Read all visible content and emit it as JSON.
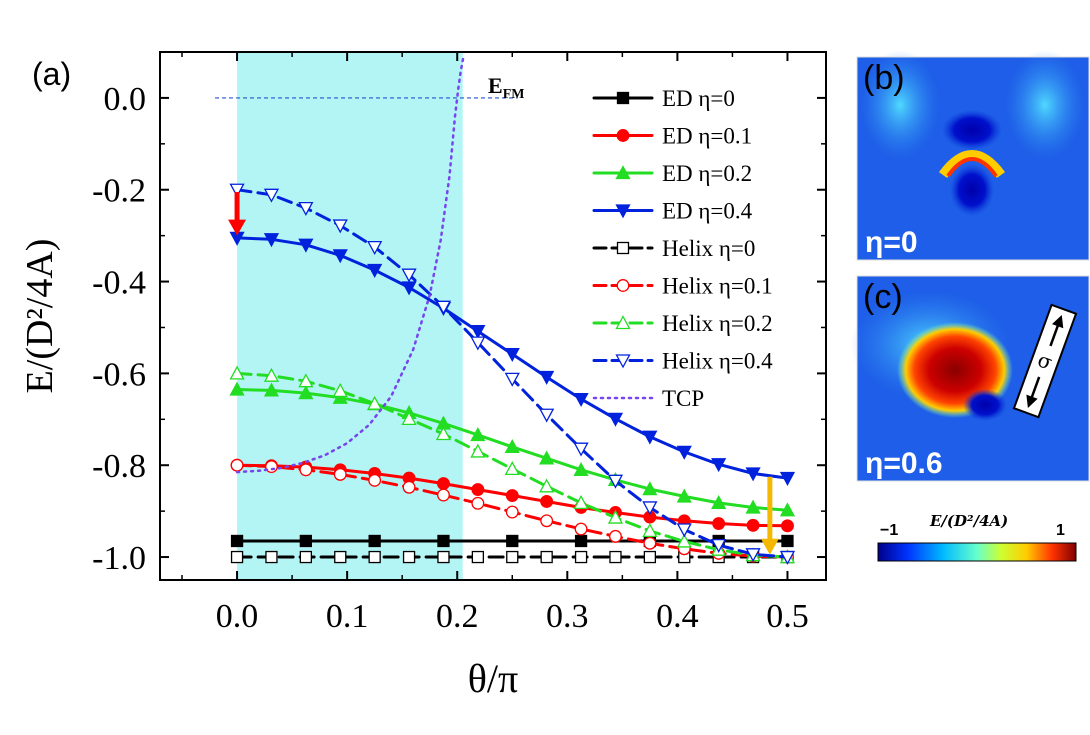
{
  "chart_data": {
    "type": "line",
    "panel_label": "(a)",
    "xlabel": "θ/π",
    "ylabel": "E/(D²/4A)",
    "xlim": [
      -0.07,
      0.535
    ],
    "ylim": [
      -1.05,
      0.1
    ],
    "x_ticks": [
      "0.0",
      "0.1",
      "0.2",
      "0.3",
      "0.4",
      "0.5"
    ],
    "y_ticks": [
      "0.0",
      "-0.2",
      "-0.4",
      "-0.6",
      "-0.8",
      "-1.0"
    ],
    "efm_label": "E",
    "efm_sub": "FM",
    "efm_value": 0.0,
    "shaded_region": [
      0.0,
      0.205
    ],
    "shade_color": "#b3f5f5",
    "series": [
      {
        "name": "ED η=0",
        "color": "#000000",
        "style": "solid",
        "marker": "square",
        "filled": true,
        "x": [
          0,
          0.0625,
          0.125,
          0.1875,
          0.25,
          0.3125,
          0.375,
          0.4375,
          0.5
        ],
        "y": [
          -0.965,
          -0.965,
          -0.965,
          -0.965,
          -0.965,
          -0.965,
          -0.965,
          -0.965,
          -0.965
        ]
      },
      {
        "name": "ED η=0.1",
        "color": "#ff0000",
        "style": "solid",
        "marker": "circle",
        "filled": true,
        "x": [
          0,
          0.03125,
          0.0625,
          0.09375,
          0.125,
          0.15625,
          0.1875,
          0.21875,
          0.25,
          0.28125,
          0.3125,
          0.34375,
          0.375,
          0.40625,
          0.4375,
          0.46875,
          0.5
        ],
        "y": [
          -0.8,
          -0.801,
          -0.804,
          -0.81,
          -0.818,
          -0.828,
          -0.84,
          -0.853,
          -0.866,
          -0.879,
          -0.892,
          -0.903,
          -0.913,
          -0.921,
          -0.927,
          -0.931,
          -0.932
        ]
      },
      {
        "name": "ED η=0.2",
        "color": "#22dd22",
        "style": "solid",
        "marker": "triangle-up",
        "filled": true,
        "x": [
          0,
          0.03125,
          0.0625,
          0.09375,
          0.125,
          0.15625,
          0.1875,
          0.21875,
          0.25,
          0.28125,
          0.3125,
          0.34375,
          0.375,
          0.40625,
          0.4375,
          0.46875,
          0.5
        ],
        "y": [
          -0.635,
          -0.637,
          -0.643,
          -0.653,
          -0.667,
          -0.686,
          -0.709,
          -0.734,
          -0.76,
          -0.785,
          -0.81,
          -0.832,
          -0.852,
          -0.868,
          -0.882,
          -0.892,
          -0.898
        ]
      },
      {
        "name": "ED η=0.4",
        "color": "#0022dd",
        "style": "solid",
        "marker": "triangle-down",
        "filled": true,
        "x": [
          0,
          0.03125,
          0.0625,
          0.09375,
          0.125,
          0.15625,
          0.1875,
          0.21875,
          0.25,
          0.28125,
          0.3125,
          0.34375,
          0.375,
          0.40625,
          0.4375,
          0.46875,
          0.5
        ],
        "y": [
          -0.305,
          -0.308,
          -0.32,
          -0.343,
          -0.375,
          -0.413,
          -0.458,
          -0.508,
          -0.558,
          -0.608,
          -0.656,
          -0.699,
          -0.738,
          -0.771,
          -0.798,
          -0.818,
          -0.828
        ]
      },
      {
        "name": "Helix η=0",
        "color": "#000000",
        "style": "dash",
        "marker": "square",
        "filled": false,
        "x": [
          0,
          0.03125,
          0.0625,
          0.09375,
          0.125,
          0.15625,
          0.1875,
          0.21875,
          0.25,
          0.28125,
          0.3125,
          0.34375,
          0.375,
          0.40625,
          0.4375,
          0.46875,
          0.5
        ],
        "y": [
          -1.0,
          -1.0,
          -1.0,
          -1.0,
          -1.0,
          -1.0,
          -1.0,
          -1.0,
          -1.0,
          -1.0,
          -1.0,
          -1.0,
          -1.0,
          -1.0,
          -1.0,
          -1.0,
          -1.0
        ]
      },
      {
        "name": "Helix η=0.1",
        "color": "#ff0000",
        "style": "dash",
        "marker": "circle",
        "filled": false,
        "x": [
          0,
          0.03125,
          0.0625,
          0.09375,
          0.125,
          0.15625,
          0.1875,
          0.21875,
          0.25,
          0.28125,
          0.3125,
          0.34375,
          0.375,
          0.40625,
          0.4375,
          0.46875,
          0.5
        ],
        "y": [
          -0.8,
          -0.803,
          -0.81,
          -0.82,
          -0.833,
          -0.848,
          -0.865,
          -0.883,
          -0.902,
          -0.921,
          -0.939,
          -0.955,
          -0.97,
          -0.982,
          -0.992,
          -0.998,
          -1.0
        ]
      },
      {
        "name": "Helix η=0.2",
        "color": "#22dd22",
        "style": "dash",
        "marker": "triangle-up",
        "filled": false,
        "x": [
          0,
          0.03125,
          0.0625,
          0.09375,
          0.125,
          0.15625,
          0.1875,
          0.21875,
          0.25,
          0.28125,
          0.3125,
          0.34375,
          0.375,
          0.40625,
          0.4375,
          0.46875,
          0.5
        ],
        "y": [
          -0.6,
          -0.605,
          -0.617,
          -0.638,
          -0.666,
          -0.699,
          -0.732,
          -0.77,
          -0.808,
          -0.846,
          -0.882,
          -0.914,
          -0.943,
          -0.966,
          -0.984,
          -0.996,
          -1.0
        ]
      },
      {
        "name": "Helix η=0.4",
        "color": "#0022dd",
        "style": "dash",
        "marker": "triangle-down",
        "filled": false,
        "x": [
          0,
          0.03125,
          0.0625,
          0.09375,
          0.125,
          0.15625,
          0.1875,
          0.21875,
          0.25,
          0.28125,
          0.3125,
          0.34375,
          0.375,
          0.40625,
          0.4375,
          0.46875,
          0.5
        ],
        "y": [
          -0.2,
          -0.211,
          -0.24,
          -0.278,
          -0.325,
          -0.385,
          -0.455,
          -0.533,
          -0.612,
          -0.69,
          -0.764,
          -0.834,
          -0.892,
          -0.94,
          -0.974,
          -0.994,
          -1.0
        ]
      },
      {
        "name": "TCP",
        "color": "#7744ee",
        "style": "dot",
        "marker": "none",
        "filled": false,
        "x": [
          0.0,
          0.02,
          0.04,
          0.06,
          0.08,
          0.1,
          0.12,
          0.14,
          0.16,
          0.175,
          0.185,
          0.193,
          0.198,
          0.201,
          0.203,
          0.2045,
          0.2055,
          0.206
        ],
        "y": [
          -0.815,
          -0.812,
          -0.806,
          -0.795,
          -0.778,
          -0.752,
          -0.712,
          -0.65,
          -0.548,
          -0.43,
          -0.31,
          -0.17,
          -0.04,
          0.02,
          0.055,
          0.075,
          0.088,
          0.095
        ]
      }
    ],
    "arrows": [
      {
        "x": 0.0,
        "y_from": -0.205,
        "y_to": -0.3,
        "color": "#ff0000"
      },
      {
        "x": 0.484,
        "y_from": -0.825,
        "y_to": -0.995,
        "color": "#f5b800"
      }
    ]
  },
  "panel_b": {
    "label": "(b)",
    "eta": "η=0"
  },
  "panel_c": {
    "label": "(c)",
    "eta": "η=0.6",
    "direction_symbol": "σ"
  },
  "colorbar": {
    "title": "E/(D²/4A)",
    "min_label": "−1",
    "max_label": "1"
  }
}
